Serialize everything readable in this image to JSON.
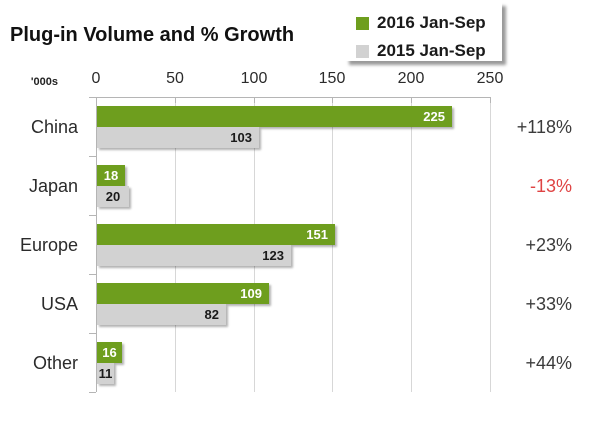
{
  "title": "Plug-in Volume and % Growth",
  "units_label": "'000s",
  "legend": {
    "items": [
      {
        "label": "2016 Jan-Sep",
        "swatch": "green-square-icon"
      },
      {
        "label": "2015 Jan-Sep",
        "swatch": "gray-square-icon"
      }
    ]
  },
  "colors": {
    "green": "#6e9e1e",
    "gray": "#d2d2d2",
    "green_bar_text": "#ffffff",
    "gray_bar_text": "#1a1a1a",
    "growth_positive": "#3b3b3b",
    "growth_negative": "#df4343"
  },
  "chart_data": {
    "type": "bar",
    "orientation": "horizontal",
    "title": "Plug-in Volume and % Growth",
    "units": "'000s",
    "xlim": [
      0,
      250
    ],
    "x_ticks": [
      0,
      50,
      100,
      150,
      200,
      250
    ],
    "grid": true,
    "legend_position": "top-right",
    "categories": [
      "China",
      "Japan",
      "Europe",
      "USA",
      "Other"
    ],
    "series": [
      {
        "name": "2016 Jan-Sep",
        "values": [
          225,
          18,
          151,
          109,
          16
        ]
      },
      {
        "name": "2015 Jan-Sep",
        "values": [
          103,
          20,
          123,
          82,
          11
        ]
      }
    ],
    "growth_labels": [
      "+118%",
      "-13%",
      "+23%",
      "+33%",
      "+44%"
    ]
  }
}
